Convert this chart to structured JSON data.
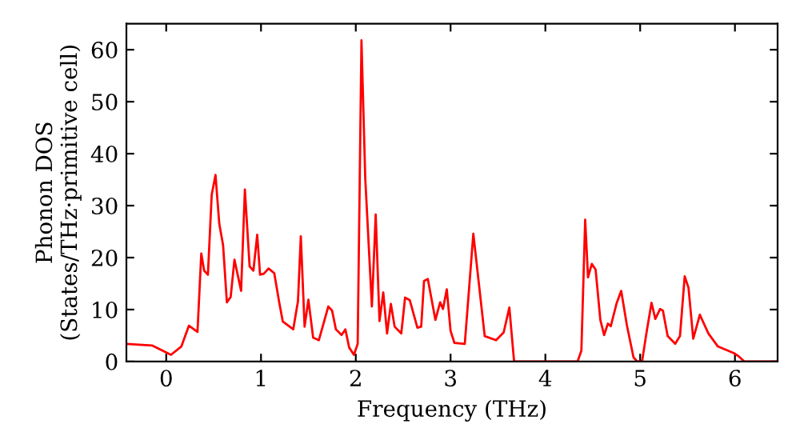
{
  "chart_data": {
    "type": "line",
    "xlabel": "Frequency (THz)",
    "ylabel": "Phonon DOS\n(States/THz·primitive cell)",
    "xlim": [
      -0.42,
      6.45
    ],
    "ylim": [
      0,
      65
    ],
    "xticks": [
      0,
      1,
      2,
      3,
      4,
      5,
      6
    ],
    "yticks": [
      0,
      10,
      20,
      30,
      40,
      50,
      60
    ],
    "grid": false,
    "legend": false,
    "marker": "none",
    "line_style": "solid",
    "series": [
      {
        "color": "#ff0000",
        "x": [
          -0.42,
          -0.15,
          0.05,
          0.16,
          0.24,
          0.33,
          0.37,
          0.4,
          0.44,
          0.48,
          0.52,
          0.56,
          0.6,
          0.64,
          0.68,
          0.72,
          0.79,
          0.83,
          0.88,
          0.92,
          0.96,
          0.99,
          1.03,
          1.08,
          1.14,
          1.19,
          1.23,
          1.34,
          1.39,
          1.42,
          1.46,
          1.5,
          1.55,
          1.61,
          1.71,
          1.75,
          1.79,
          1.85,
          1.89,
          1.93,
          1.98,
          2.02,
          2.06,
          2.1,
          2.17,
          2.21,
          2.25,
          2.29,
          2.33,
          2.37,
          2.41,
          2.48,
          2.52,
          2.57,
          2.65,
          2.69,
          2.72,
          2.76,
          2.84,
          2.89,
          2.92,
          2.96,
          3.0,
          3.04,
          3.15,
          3.24,
          3.36,
          3.48,
          3.56,
          3.62,
          3.67,
          4.34,
          4.38,
          4.42,
          4.45,
          4.49,
          4.53,
          4.58,
          4.62,
          4.66,
          4.69,
          4.75,
          4.8,
          4.86,
          4.93,
          4.97,
          5.02,
          5.07,
          5.12,
          5.16,
          5.21,
          5.24,
          5.29,
          5.37,
          5.42,
          5.47,
          5.51,
          5.56,
          5.63,
          5.72,
          5.82,
          5.99,
          6.04,
          6.1,
          6.44
        ],
        "values": [
          3.4,
          3.1,
          1.3,
          2.9,
          6.9,
          5.7,
          20.8,
          17.5,
          16.7,
          32.1,
          35.9,
          26.5,
          22.4,
          11.4,
          12.4,
          19.6,
          13.6,
          33.1,
          18.3,
          17.5,
          24.4,
          16.7,
          16.9,
          17.9,
          17.0,
          11.6,
          7.7,
          6.2,
          11.6,
          24.1,
          6.7,
          11.9,
          4.6,
          4.1,
          10.6,
          9.8,
          6.2,
          5.1,
          6.2,
          2.7,
          1.3,
          3.4,
          61.8,
          35.2,
          10.6,
          28.3,
          7.8,
          13.3,
          5.4,
          11.1,
          6.7,
          5.4,
          12.3,
          11.8,
          6.5,
          6.7,
          15.5,
          15.9,
          8.0,
          11.4,
          10.1,
          13.9,
          5.9,
          3.6,
          3.4,
          24.6,
          4.9,
          4.1,
          5.6,
          10.4,
          0,
          0,
          2.1,
          27.3,
          16.2,
          18.8,
          17.7,
          8.0,
          5.1,
          7.3,
          6.8,
          11.1,
          13.6,
          7.0,
          0.8,
          0,
          0,
          5.9,
          11.3,
          8.2,
          10.1,
          9.8,
          4.9,
          3.4,
          4.9,
          16.4,
          14.2,
          4.4,
          9.0,
          5.4,
          2.9,
          1.6,
          1.0,
          0,
          0
        ]
      }
    ]
  }
}
